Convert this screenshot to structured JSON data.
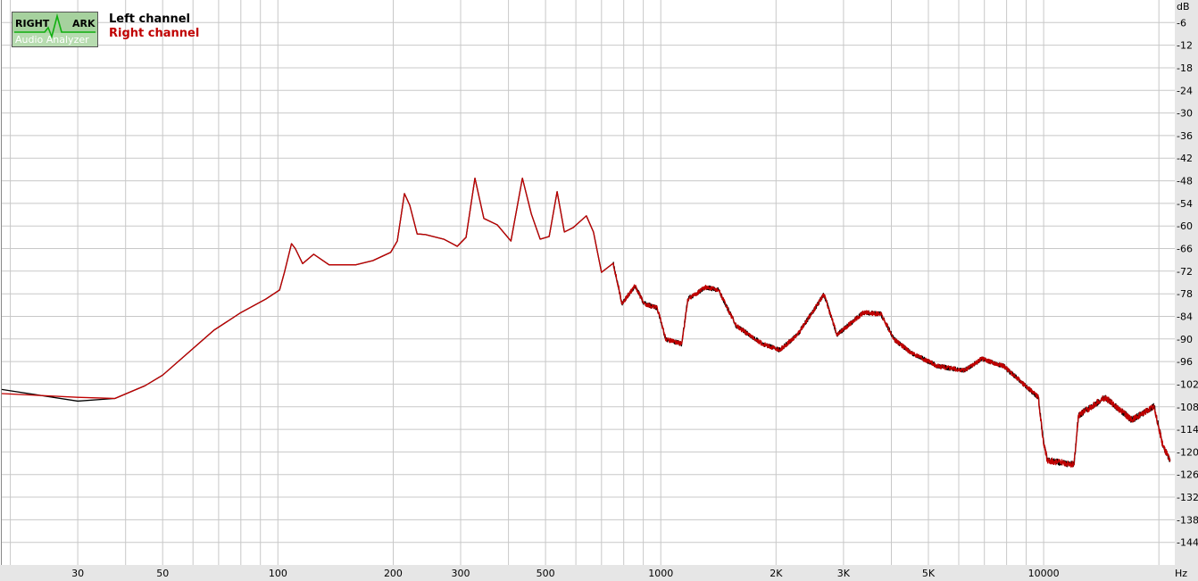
{
  "logo": {
    "line1a": "RIGHT",
    "line1b": "ARK",
    "line2": "Audio Analyzer"
  },
  "legend": {
    "left": "Left channel",
    "right": "Right channel"
  },
  "colors": {
    "left": "#000000",
    "right": "#c00000",
    "grid": "#c8c8c8",
    "axis_band": "#e6e6e6"
  },
  "chart_data": {
    "type": "line",
    "title": "",
    "xlabel": "Hz",
    "ylabel": "dB",
    "xscale": "log",
    "xlim": [
      19,
      22000
    ],
    "ylim": [
      -150,
      0
    ],
    "grid": true,
    "legend_position": "top-left",
    "x_ticks": [
      {
        "v": 30,
        "label": "30"
      },
      {
        "v": 50,
        "label": "50"
      },
      {
        "v": 100,
        "label": "100"
      },
      {
        "v": 200,
        "label": "200"
      },
      {
        "v": 300,
        "label": "300"
      },
      {
        "v": 500,
        "label": "500"
      },
      {
        "v": 1000,
        "label": "1000"
      },
      {
        "v": 2000,
        "label": "2K"
      },
      {
        "v": 3000,
        "label": "3K"
      },
      {
        "v": 5000,
        "label": "5K"
      },
      {
        "v": 10000,
        "label": "10000"
      }
    ],
    "y_ticks": [
      -6,
      -12,
      -18,
      -24,
      -30,
      -36,
      -42,
      -48,
      -54,
      -60,
      -66,
      -72,
      -78,
      -84,
      -90,
      -96,
      -102,
      -108,
      -114,
      -120,
      -126,
      -132,
      -138,
      -144
    ],
    "series": [
      {
        "name": "Left channel",
        "points": [
          [
            19,
            -103.4
          ],
          [
            30,
            -106.5
          ],
          [
            37.5,
            -105.8
          ],
          [
            45,
            -102.4
          ],
          [
            50,
            -99.6
          ],
          [
            68,
            -87.7
          ],
          [
            80,
            -83
          ],
          [
            93,
            -79.4
          ],
          [
            101,
            -77
          ],
          [
            104,
            -72.3
          ],
          [
            108.5,
            -64.7
          ],
          [
            111,
            -66
          ],
          [
            116,
            -70
          ],
          [
            124,
            -67.5
          ],
          [
            136,
            -70.3
          ],
          [
            160,
            -70.3
          ],
          [
            177,
            -69.2
          ],
          [
            197,
            -67
          ],
          [
            205,
            -64
          ],
          [
            214,
            -51.4
          ],
          [
            221,
            -54.5
          ],
          [
            231,
            -62.1
          ],
          [
            243,
            -62.3
          ],
          [
            271,
            -63.5
          ],
          [
            294,
            -65.4
          ],
          [
            310,
            -63
          ],
          [
            327,
            -47.3
          ],
          [
            345,
            -58
          ],
          [
            374,
            -59.7
          ],
          [
            406,
            -64
          ],
          [
            435,
            -47.3
          ],
          [
            459,
            -56.8
          ],
          [
            484,
            -63.5
          ],
          [
            511,
            -62.8
          ],
          [
            536,
            -50.9
          ],
          [
            560,
            -61.6
          ],
          [
            591,
            -60.4
          ],
          [
            639,
            -57.3
          ],
          [
            667,
            -61.6
          ],
          [
            700,
            -72.3
          ],
          [
            751,
            -69.9
          ],
          [
            792,
            -80.6
          ],
          [
            857,
            -75.9
          ],
          [
            904,
            -80.6
          ],
          [
            979,
            -81.8
          ],
          [
            1031,
            -90.1
          ],
          [
            1134,
            -91.3
          ],
          [
            1177,
            -79.4
          ],
          [
            1307,
            -76.3
          ],
          [
            1415,
            -77
          ],
          [
            1573,
            -86.5
          ],
          [
            1842,
            -91.3
          ],
          [
            2047,
            -92.9
          ],
          [
            2275,
            -88.9
          ],
          [
            2668,
            -78.2
          ],
          [
            2887,
            -88.9
          ],
          [
            3381,
            -83
          ],
          [
            3758,
            -83.4
          ],
          [
            4067,
            -90.1
          ],
          [
            4509,
            -93.7
          ],
          [
            5283,
            -97.2
          ],
          [
            6193,
            -98.4
          ],
          [
            6881,
            -95.3
          ],
          [
            7855,
            -97.2
          ],
          [
            9683,
            -105.5
          ],
          [
            9947,
            -116.2
          ],
          [
            10216,
            -122.2
          ],
          [
            12002,
            -123.4
          ],
          [
            12322,
            -110.3
          ],
          [
            14470,
            -105.5
          ],
          [
            16996,
            -111.5
          ],
          [
            19430,
            -107.9
          ],
          [
            20500,
            -118.6
          ],
          [
            21400,
            -122.2
          ]
        ]
      },
      {
        "name": "Right channel",
        "points": [
          [
            19,
            -104.5
          ],
          [
            30,
            -105.5
          ],
          [
            37.5,
            -105.8
          ],
          [
            45,
            -102.4
          ],
          [
            50,
            -99.6
          ],
          [
            68,
            -87.7
          ],
          [
            80,
            -83
          ],
          [
            93,
            -79.4
          ],
          [
            101,
            -77
          ],
          [
            104,
            -72.3
          ],
          [
            108.5,
            -64.7
          ],
          [
            111,
            -66
          ],
          [
            116,
            -70
          ],
          [
            124,
            -67.5
          ],
          [
            136,
            -70.3
          ],
          [
            160,
            -70.3
          ],
          [
            177,
            -69.2
          ],
          [
            197,
            -67
          ],
          [
            205,
            -64
          ],
          [
            214,
            -51.4
          ],
          [
            221,
            -54.5
          ],
          [
            231,
            -62.1
          ],
          [
            243,
            -62.3
          ],
          [
            271,
            -63.5
          ],
          [
            294,
            -65.4
          ],
          [
            310,
            -63
          ],
          [
            327,
            -47.3
          ],
          [
            345,
            -58
          ],
          [
            374,
            -59.7
          ],
          [
            406,
            -64
          ],
          [
            435,
            -47.3
          ],
          [
            459,
            -56.8
          ],
          [
            484,
            -63.5
          ],
          [
            511,
            -62.8
          ],
          [
            536,
            -50.9
          ],
          [
            560,
            -61.6
          ],
          [
            591,
            -60.4
          ],
          [
            639,
            -57.3
          ],
          [
            667,
            -61.6
          ],
          [
            700,
            -72.3
          ],
          [
            751,
            -69.9
          ],
          [
            792,
            -80.6
          ],
          [
            857,
            -75.9
          ],
          [
            904,
            -80.6
          ],
          [
            979,
            -81.8
          ],
          [
            1031,
            -90.1
          ],
          [
            1134,
            -91.3
          ],
          [
            1177,
            -79.4
          ],
          [
            1307,
            -76.3
          ],
          [
            1415,
            -77
          ],
          [
            1573,
            -86.5
          ],
          [
            1842,
            -91.3
          ],
          [
            2047,
            -92.9
          ],
          [
            2275,
            -88.9
          ],
          [
            2668,
            -78.2
          ],
          [
            2887,
            -88.9
          ],
          [
            3381,
            -83
          ],
          [
            3758,
            -83.4
          ],
          [
            4067,
            -90.1
          ],
          [
            4509,
            -93.7
          ],
          [
            5283,
            -97.2
          ],
          [
            6193,
            -98.4
          ],
          [
            6881,
            -95.3
          ],
          [
            7855,
            -97.2
          ],
          [
            9683,
            -105.5
          ],
          [
            9947,
            -116.2
          ],
          [
            10216,
            -122.2
          ],
          [
            12002,
            -123.4
          ],
          [
            12322,
            -110.3
          ],
          [
            14470,
            -105.5
          ],
          [
            16996,
            -111.5
          ],
          [
            19430,
            -107.9
          ],
          [
            20500,
            -118.6
          ],
          [
            21400,
            -122.2
          ]
        ]
      }
    ]
  }
}
